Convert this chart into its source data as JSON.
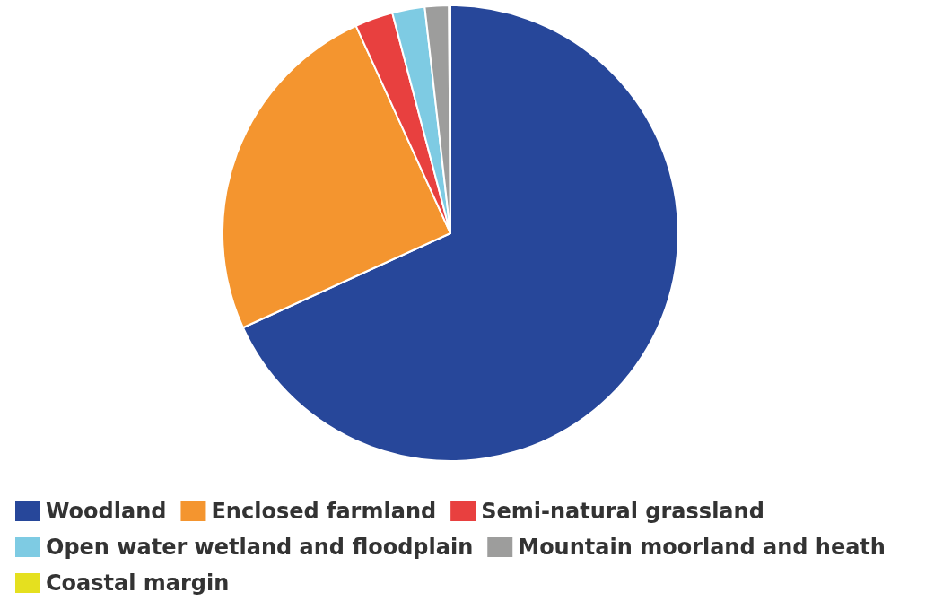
{
  "chart_data": {
    "type": "pie",
    "categories": [
      "Woodland",
      "Enclosed farmland",
      "Semi-natural grassland",
      "Open water wetland and floodplain",
      "Mountain moorland and heath",
      "Coastal margin"
    ],
    "values": [
      68.2,
      25.0,
      2.7,
      2.3,
      1.7,
      0.1
    ],
    "colors": [
      "#27479a",
      "#f4952f",
      "#e8403f",
      "#7ecbe3",
      "#9d9d9c",
      "#e5e01f"
    ],
    "legend": "bottom"
  }
}
